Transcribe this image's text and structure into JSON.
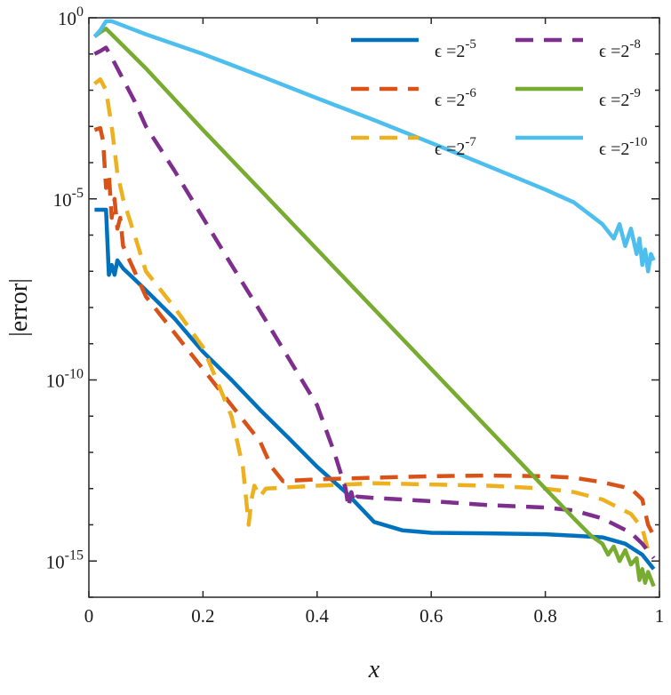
{
  "chart_data": {
    "type": "line",
    "title": "",
    "xlabel": "x",
    "ylabel": "|error|",
    "xlim": [
      0,
      1
    ],
    "ylim": [
      1e-16,
      1
    ],
    "yscale": "log",
    "x_ticks": [
      {
        "value": 0,
        "label": "0"
      },
      {
        "value": 0.2,
        "label": "0.2"
      },
      {
        "value": 0.4,
        "label": "0.4"
      },
      {
        "value": 0.6,
        "label": "0.6"
      },
      {
        "value": 0.8,
        "label": "0.8"
      },
      {
        "value": 1,
        "label": "1"
      }
    ],
    "y_ticks": [
      {
        "value": 1,
        "base": "10",
        "exp": "0"
      },
      {
        "value": 1e-05,
        "base": "10",
        "exp": "-5"
      },
      {
        "value": 1e-10,
        "base": "10",
        "exp": "-10"
      },
      {
        "value": 1e-15,
        "base": "10",
        "exp": "-15"
      }
    ],
    "grid": false,
    "legend_position": "top-right",
    "series": [
      {
        "name": "ε = 2^-5",
        "legend_base": "ϵ =2",
        "legend_exp": "-5",
        "color": "#0072bd",
        "dashed": false,
        "points": [
          [
            0.01,
            5e-06
          ],
          [
            0.02,
            5e-06
          ],
          [
            0.03,
            5e-06
          ],
          [
            0.035,
            8e-08
          ],
          [
            0.04,
            1.5e-07
          ],
          [
            0.045,
            8e-08
          ],
          [
            0.05,
            2e-07
          ],
          [
            0.06,
            1.2e-07
          ],
          [
            0.08,
            6e-08
          ],
          [
            0.1,
            3e-08
          ],
          [
            0.15,
            5e-09
          ],
          [
            0.2,
            6e-10
          ],
          [
            0.25,
            1e-10
          ],
          [
            0.3,
            1.5e-11
          ],
          [
            0.35,
            2.5e-12
          ],
          [
            0.4,
            4e-13
          ],
          [
            0.45,
            8e-14
          ],
          [
            0.5,
            1.2e-14
          ],
          [
            0.55,
            7e-15
          ],
          [
            0.6,
            6e-15
          ],
          [
            0.7,
            5.8e-15
          ],
          [
            0.8,
            5.5e-15
          ],
          [
            0.85,
            5e-15
          ],
          [
            0.9,
            4.5e-15
          ],
          [
            0.94,
            3e-15
          ],
          [
            0.97,
            1.5e-15
          ],
          [
            0.99,
            6e-16
          ]
        ]
      },
      {
        "name": "ε = 2^-6",
        "legend_base": "ϵ =2",
        "legend_exp": "-6",
        "color": "#d95319",
        "dashed": true,
        "points": [
          [
            0.01,
            0.0008
          ],
          [
            0.02,
            0.0009
          ],
          [
            0.025,
            0.0004
          ],
          [
            0.03,
            2e-05
          ],
          [
            0.035,
            5e-05
          ],
          [
            0.04,
            3e-06
          ],
          [
            0.045,
            1e-05
          ],
          [
            0.05,
            1.5e-06
          ],
          [
            0.055,
            3e-06
          ],
          [
            0.06,
            5e-07
          ],
          [
            0.08,
            1e-07
          ],
          [
            0.1,
            2e-08
          ],
          [
            0.15,
            2e-09
          ],
          [
            0.2,
            2e-10
          ],
          [
            0.25,
            2e-11
          ],
          [
            0.3,
            2e-12
          ],
          [
            0.32,
            4e-13
          ],
          [
            0.34,
            1.6e-13
          ],
          [
            0.4,
            1.8e-13
          ],
          [
            0.5,
            2e-13
          ],
          [
            0.6,
            2.2e-13
          ],
          [
            0.7,
            2.3e-13
          ],
          [
            0.8,
            2.2e-13
          ],
          [
            0.85,
            2e-13
          ],
          [
            0.9,
            1.5e-13
          ],
          [
            0.95,
            1e-13
          ],
          [
            0.97,
            5e-14
          ],
          [
            0.98,
            1e-14
          ],
          [
            0.99,
            5e-15
          ]
        ]
      },
      {
        "name": "ε = 2^-7",
        "legend_base": "ϵ =2",
        "legend_exp": "-7",
        "color": "#edb120",
        "dashed": true,
        "points": [
          [
            0.01,
            0.015
          ],
          [
            0.02,
            0.02
          ],
          [
            0.03,
            0.01
          ],
          [
            0.04,
            0.001
          ],
          [
            0.05,
            5e-05
          ],
          [
            0.06,
            1e-05
          ],
          [
            0.08,
            1e-06
          ],
          [
            0.1,
            1e-07
          ],
          [
            0.15,
            1e-08
          ],
          [
            0.2,
            8e-10
          ],
          [
            0.25,
            1e-11
          ],
          [
            0.27,
            4e-13
          ],
          [
            0.28,
            1e-14
          ],
          [
            0.285,
            5e-14
          ],
          [
            0.29,
            1.2e-13
          ],
          [
            0.3,
            6e-14
          ],
          [
            0.31,
            1e-13
          ],
          [
            0.4,
            1.2e-13
          ],
          [
            0.5,
            1.4e-13
          ],
          [
            0.6,
            1.3e-13
          ],
          [
            0.7,
            1.2e-13
          ],
          [
            0.8,
            1e-13
          ],
          [
            0.85,
            8e-14
          ],
          [
            0.9,
            5e-14
          ],
          [
            0.95,
            2e-14
          ],
          [
            0.97,
            8e-15
          ],
          [
            0.98,
            2e-15
          ],
          [
            0.99,
            2.5e-15
          ]
        ]
      },
      {
        "name": "ε = 2^-8",
        "legend_base": "ϵ =2",
        "legend_exp": "-8",
        "color": "#7e2f8e",
        "dashed": true,
        "points": [
          [
            0.01,
            0.1
          ],
          [
            0.02,
            0.12
          ],
          [
            0.03,
            0.15
          ],
          [
            0.04,
            0.08
          ],
          [
            0.06,
            0.02
          ],
          [
            0.08,
            0.005
          ],
          [
            0.1,
            0.001
          ],
          [
            0.15,
            6e-05
          ],
          [
            0.2,
            3e-06
          ],
          [
            0.25,
            1.5e-07
          ],
          [
            0.3,
            8e-09
          ],
          [
            0.35,
            4e-10
          ],
          [
            0.4,
            2e-11
          ],
          [
            0.43,
            1e-12
          ],
          [
            0.45,
            1e-13
          ],
          [
            0.455,
            3e-14
          ],
          [
            0.46,
            8e-14
          ],
          [
            0.465,
            4e-14
          ],
          [
            0.47,
            6e-14
          ],
          [
            0.5,
            5.5e-14
          ],
          [
            0.6,
            4.5e-14
          ],
          [
            0.7,
            3.5e-14
          ],
          [
            0.8,
            3e-14
          ],
          [
            0.85,
            2.5e-14
          ],
          [
            0.9,
            1.5e-14
          ],
          [
            0.95,
            6e-15
          ],
          [
            0.97,
            3e-15
          ],
          [
            0.99,
            1.2e-15
          ]
        ]
      },
      {
        "name": "ε = 2^-9",
        "legend_base": "ϵ =2",
        "legend_exp": "-9",
        "color": "#77ac30",
        "dashed": false,
        "points": [
          [
            0.01,
            0.3
          ],
          [
            0.02,
            0.4
          ],
          [
            0.03,
            0.5
          ],
          [
            0.04,
            0.35
          ],
          [
            0.1,
            0.04
          ],
          [
            0.2,
            0.0008
          ],
          [
            0.3,
            1.8e-05
          ],
          [
            0.4,
            4e-07
          ],
          [
            0.5,
            9e-09
          ],
          [
            0.6,
            2e-10
          ],
          [
            0.7,
            4.5e-12
          ],
          [
            0.8,
            1e-13
          ],
          [
            0.85,
            1.5e-14
          ],
          [
            0.88,
            5e-15
          ],
          [
            0.9,
            3e-15
          ],
          [
            0.91,
            1.5e-15
          ],
          [
            0.92,
            2.5e-15
          ],
          [
            0.93,
            1e-15
          ],
          [
            0.94,
            2e-15
          ],
          [
            0.95,
            8e-16
          ],
          [
            0.96,
            1.2e-15
          ],
          [
            0.965,
            3e-16
          ],
          [
            0.97,
            6e-16
          ],
          [
            0.975,
            2.5e-16
          ],
          [
            0.98,
            5e-16
          ],
          [
            0.99,
            2e-16
          ]
        ]
      },
      {
        "name": "ε = 2^-10",
        "legend_base": "ϵ =2",
        "legend_exp": "-10",
        "color": "#4dbeee",
        "dashed": false,
        "points": [
          [
            0.01,
            0.3
          ],
          [
            0.02,
            0.45
          ],
          [
            0.03,
            0.8
          ],
          [
            0.04,
            0.8
          ],
          [
            0.05,
            0.7
          ],
          [
            0.1,
            0.35
          ],
          [
            0.2,
            0.1
          ],
          [
            0.3,
            0.025
          ],
          [
            0.4,
            0.006
          ],
          [
            0.5,
            0.0015
          ],
          [
            0.6,
            0.00035
          ],
          [
            0.7,
            8e-05
          ],
          [
            0.8,
            1.8e-05
          ],
          [
            0.85,
            8e-06
          ],
          [
            0.9,
            2e-06
          ],
          [
            0.92,
            8e-07
          ],
          [
            0.93,
            2e-06
          ],
          [
            0.94,
            5e-07
          ],
          [
            0.95,
            1.5e-06
          ],
          [
            0.96,
            3e-07
          ],
          [
            0.965,
            8e-07
          ],
          [
            0.97,
            1.5e-07
          ],
          [
            0.975,
            4e-07
          ],
          [
            0.98,
            1e-07
          ],
          [
            0.985,
            3e-07
          ],
          [
            0.99,
            2e-07
          ]
        ]
      }
    ]
  }
}
